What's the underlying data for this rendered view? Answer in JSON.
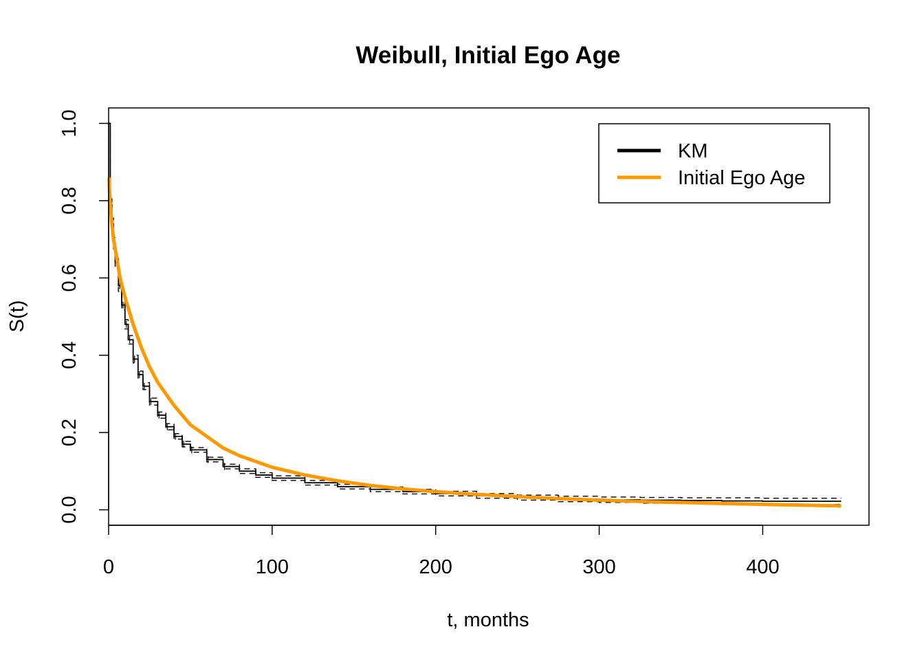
{
  "chart_data": {
    "type": "line",
    "title": "Weibull, Initial Ego Age",
    "xlabel": "t, months",
    "ylabel": "S(t)",
    "xlim": [
      0,
      465
    ],
    "ylim": [
      -0.04,
      1.04
    ],
    "xticks": [
      0,
      100,
      200,
      300,
      400
    ],
    "yticks": [
      0.0,
      0.2,
      0.4,
      0.6,
      0.8,
      1.0
    ],
    "xtick_labels": [
      "0",
      "100",
      "200",
      "300",
      "400"
    ],
    "ytick_labels": [
      "0.0",
      "0.2",
      "0.4",
      "0.6",
      "0.8",
      "1.0"
    ],
    "grid": false,
    "legend_position": "top-right",
    "legend": [
      {
        "label": "KM",
        "color": "#000000"
      },
      {
        "label": "Initial Ego Age",
        "color": "#FF9900"
      }
    ],
    "series": [
      {
        "name": "KM",
        "color": "#000000",
        "step": true,
        "x": [
          0,
          1,
          2,
          3,
          4,
          6,
          8,
          10,
          12,
          15,
          18,
          21,
          25,
          30,
          35,
          40,
          45,
          50,
          60,
          70,
          80,
          90,
          100,
          120,
          140,
          160,
          180,
          200,
          225,
          250,
          275,
          300,
          325,
          350,
          375,
          400,
          425,
          448
        ],
        "y": [
          1.0,
          0.79,
          0.74,
          0.69,
          0.64,
          0.58,
          0.53,
          0.48,
          0.44,
          0.39,
          0.35,
          0.32,
          0.28,
          0.245,
          0.215,
          0.19,
          0.17,
          0.155,
          0.13,
          0.112,
          0.1,
          0.09,
          0.082,
          0.07,
          0.06,
          0.053,
          0.047,
          0.042,
          0.036,
          0.031,
          0.028,
          0.026,
          0.025,
          0.024,
          0.023,
          0.022,
          0.022,
          0.022
        ],
        "ci_lower": [
          1.0,
          0.775,
          0.725,
          0.675,
          0.625,
          0.565,
          0.517,
          0.468,
          0.429,
          0.38,
          0.341,
          0.311,
          0.271,
          0.237,
          0.207,
          0.183,
          0.163,
          0.149,
          0.124,
          0.106,
          0.094,
          0.084,
          0.076,
          0.064,
          0.054,
          0.047,
          0.041,
          0.036,
          0.03,
          0.025,
          0.021,
          0.019,
          0.017,
          0.016,
          0.015,
          0.014,
          0.014,
          0.014
        ],
        "ci_upper": [
          1.0,
          0.805,
          0.755,
          0.705,
          0.655,
          0.595,
          0.543,
          0.492,
          0.451,
          0.4,
          0.359,
          0.329,
          0.289,
          0.253,
          0.223,
          0.197,
          0.177,
          0.161,
          0.136,
          0.118,
          0.106,
          0.096,
          0.088,
          0.076,
          0.066,
          0.059,
          0.053,
          0.048,
          0.042,
          0.038,
          0.035,
          0.033,
          0.032,
          0.031,
          0.031,
          0.03,
          0.03,
          0.03
        ]
      },
      {
        "name": "Initial Ego Age",
        "color": "#FF9900",
        "x": [
          0.3,
          0.5,
          1,
          2,
          3,
          5,
          7,
          10,
          15,
          20,
          25,
          30,
          40,
          50,
          60,
          70,
          80,
          90,
          100,
          120,
          140,
          160,
          180,
          200,
          220,
          250,
          280,
          300,
          330,
          360,
          400,
          448
        ],
        "y": [
          0.86,
          0.83,
          0.79,
          0.74,
          0.7,
          0.65,
          0.6,
          0.55,
          0.48,
          0.42,
          0.37,
          0.33,
          0.27,
          0.22,
          0.19,
          0.16,
          0.14,
          0.125,
          0.11,
          0.09,
          0.075,
          0.063,
          0.054,
          0.047,
          0.041,
          0.034,
          0.028,
          0.025,
          0.021,
          0.018,
          0.014,
          0.01
        ]
      }
    ]
  }
}
